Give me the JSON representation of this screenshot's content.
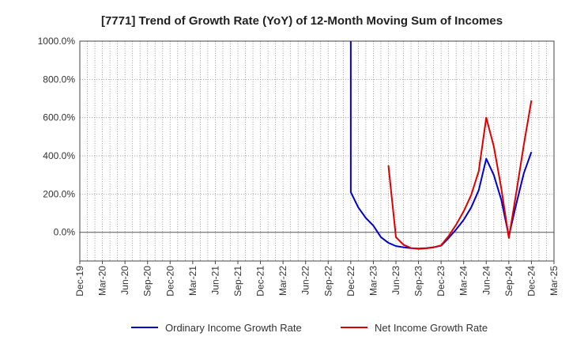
{
  "chart_data": {
    "type": "line",
    "title": "[7771]  Trend of Growth Rate (YoY) of 12-Month Moving Sum of Incomes",
    "xlabel": "",
    "ylabel": "",
    "ylim": [
      -150,
      1000
    ],
    "yticks": [
      0,
      200,
      400,
      600,
      800,
      1000
    ],
    "ytick_labels": [
      "0.0%",
      "200.0%",
      "400.0%",
      "600.0%",
      "800.0%",
      "1000.0%"
    ],
    "xtick_labels": [
      "Dec-19",
      "Mar-20",
      "Jun-20",
      "Sep-20",
      "Dec-20",
      "Mar-21",
      "Jun-21",
      "Sep-21",
      "Dec-21",
      "Mar-22",
      "Jun-22",
      "Sep-22",
      "Dec-22",
      "Mar-23",
      "Jun-23",
      "Sep-23",
      "Dec-23",
      "Mar-24",
      "Jun-24",
      "Sep-24",
      "Dec-24",
      "Mar-25"
    ],
    "grid": true,
    "legend_position": "bottom",
    "series": [
      {
        "name": "Ordinary Income Growth Rate",
        "color": "#0000cc",
        "points": [
          {
            "month": 36,
            "value": 1000
          },
          {
            "month": 36,
            "value": 210
          },
          {
            "month": 37,
            "value": 130
          },
          {
            "month": 38,
            "value": 75
          },
          {
            "month": 39,
            "value": 35
          },
          {
            "month": 40,
            "value": -25
          },
          {
            "month": 41,
            "value": -55
          },
          {
            "month": 42,
            "value": -72
          },
          {
            "month": 43,
            "value": -78
          },
          {
            "month": 44,
            "value": -83
          },
          {
            "month": 45,
            "value": -85
          },
          {
            "month": 46,
            "value": -83
          },
          {
            "month": 47,
            "value": -78
          },
          {
            "month": 48,
            "value": -70
          },
          {
            "month": 49,
            "value": -30
          },
          {
            "month": 50,
            "value": 15
          },
          {
            "month": 51,
            "value": 65
          },
          {
            "month": 52,
            "value": 130
          },
          {
            "month": 53,
            "value": 220
          },
          {
            "month": 54,
            "value": 385
          },
          {
            "month": 55,
            "value": 300
          },
          {
            "month": 56,
            "value": 170
          },
          {
            "month": 57,
            "value": -20
          },
          {
            "month": 58,
            "value": 150
          },
          {
            "month": 59,
            "value": 310
          },
          {
            "month": 60,
            "value": 420
          }
        ]
      },
      {
        "name": "Net Income Growth Rate",
        "color": "#dd0000",
        "points": [
          {
            "month": 41,
            "value": 350
          },
          {
            "month": 42,
            "value": -25
          },
          {
            "month": 43,
            "value": -65
          },
          {
            "month": 44,
            "value": -82
          },
          {
            "month": 45,
            "value": -87
          },
          {
            "month": 46,
            "value": -84
          },
          {
            "month": 47,
            "value": -79
          },
          {
            "month": 48,
            "value": -68
          },
          {
            "month": 49,
            "value": -20
          },
          {
            "month": 50,
            "value": 40
          },
          {
            "month": 51,
            "value": 110
          },
          {
            "month": 52,
            "value": 195
          },
          {
            "month": 53,
            "value": 320
          },
          {
            "month": 54,
            "value": 600
          },
          {
            "month": 55,
            "value": 450
          },
          {
            "month": 56,
            "value": 230
          },
          {
            "month": 57,
            "value": -30
          },
          {
            "month": 58,
            "value": 210
          },
          {
            "month": 59,
            "value": 460
          },
          {
            "month": 60,
            "value": 690
          }
        ]
      }
    ]
  }
}
